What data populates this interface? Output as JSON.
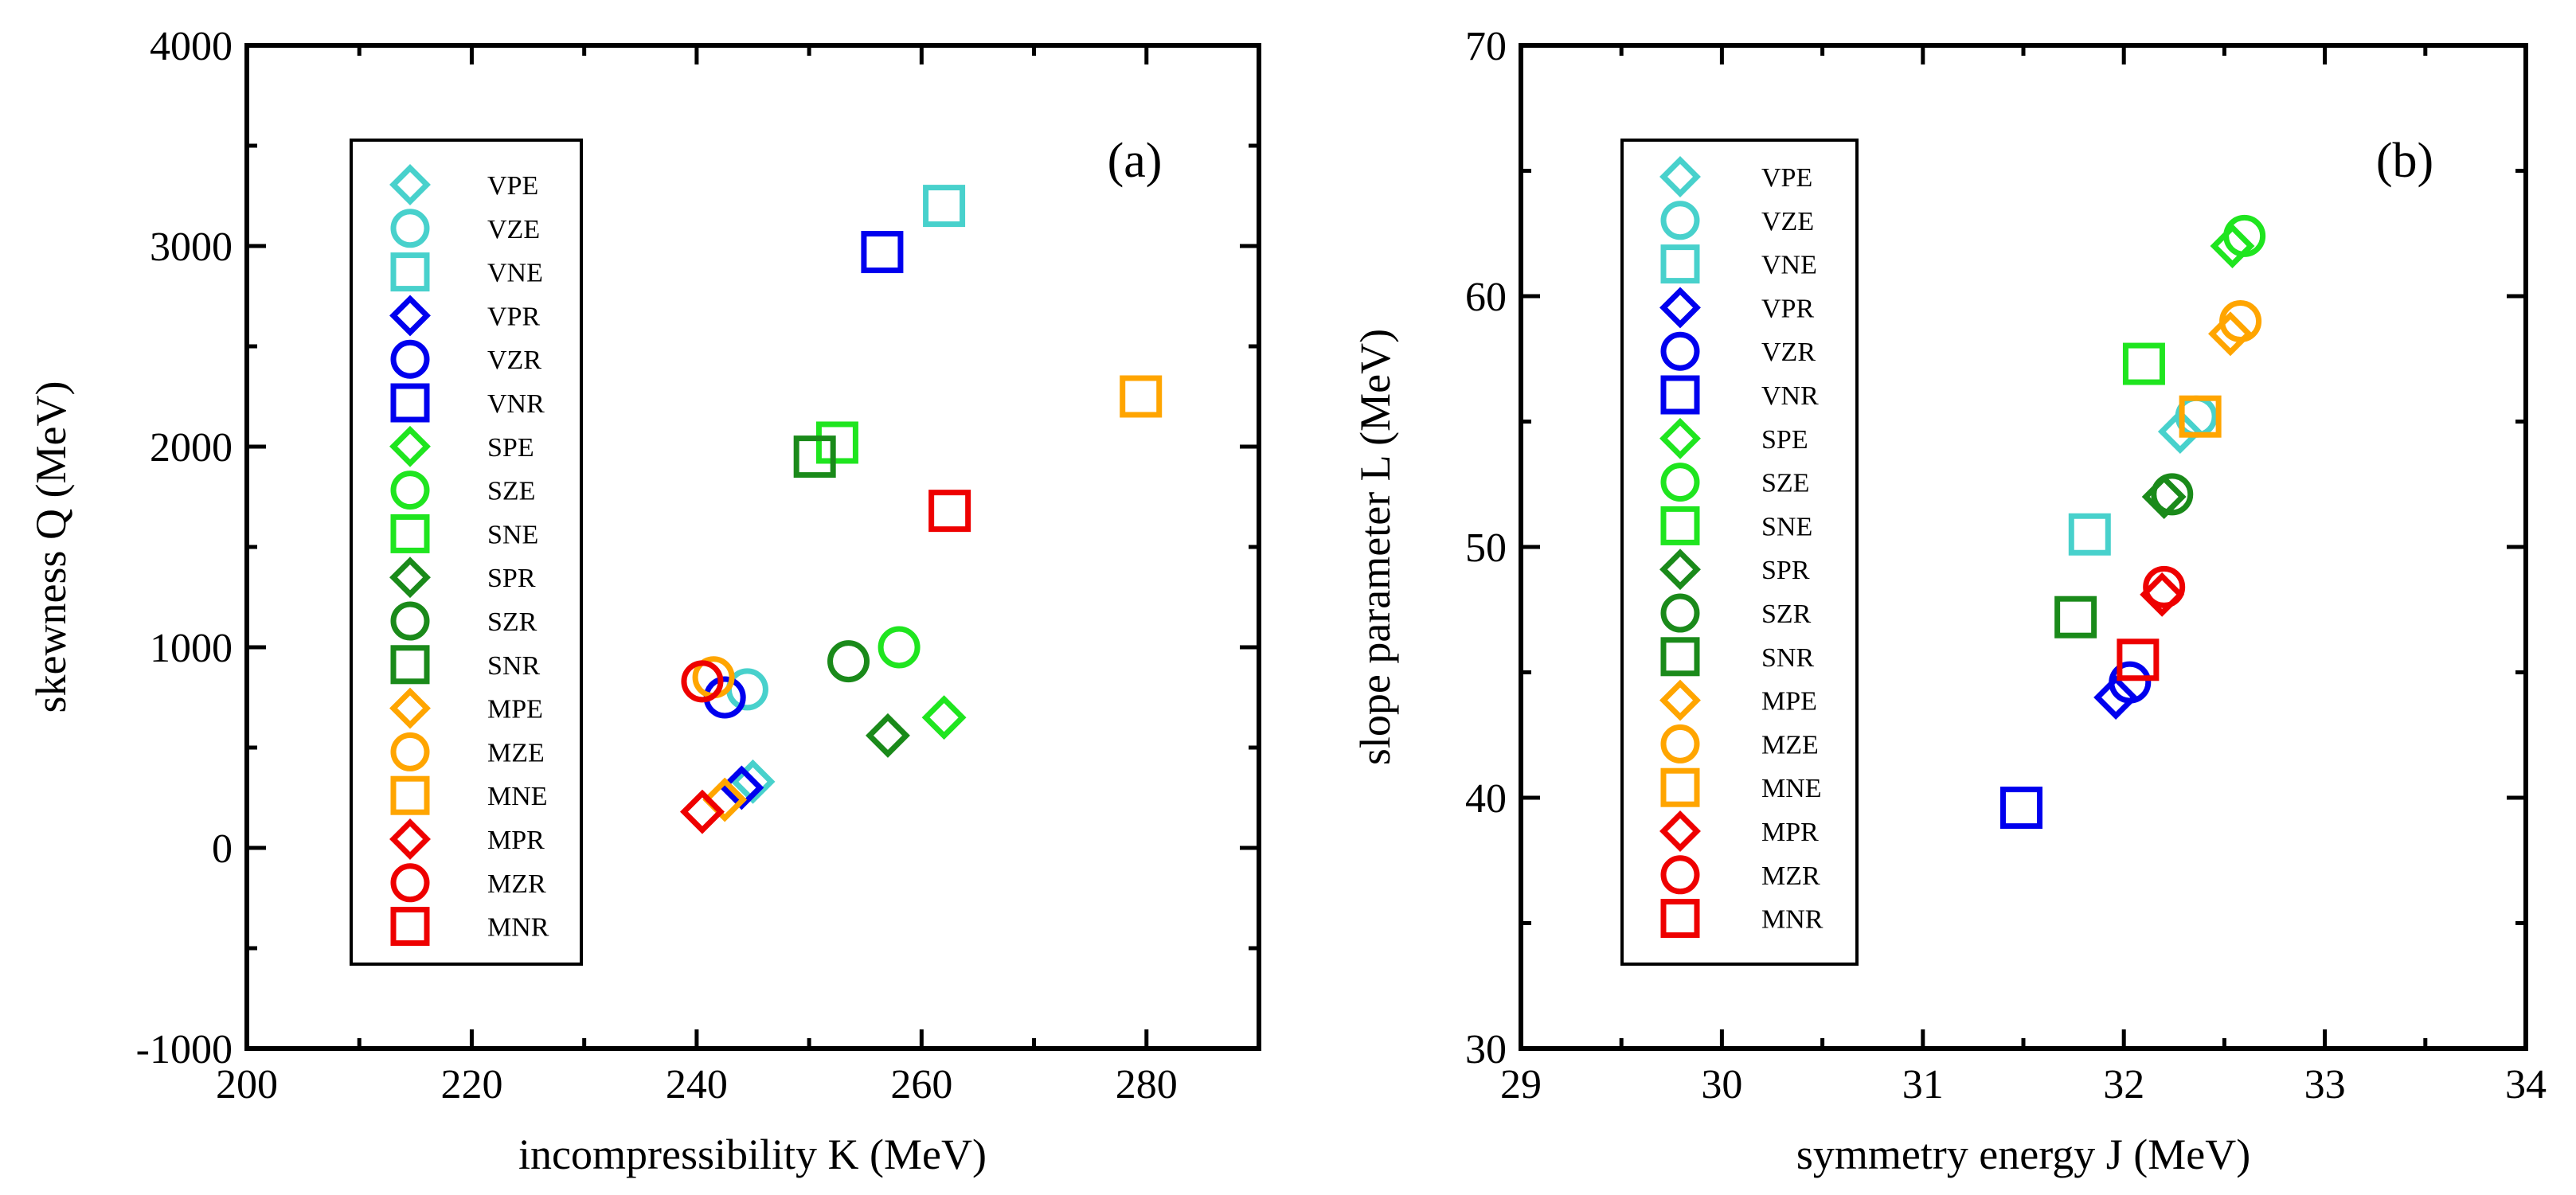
{
  "series_styles": [
    {
      "name": "VPE",
      "shape": "diamond",
      "color": "#48d1cc"
    },
    {
      "name": "VZE",
      "shape": "circle",
      "color": "#48d1cc"
    },
    {
      "name": "VNE",
      "shape": "square",
      "color": "#48d1cc"
    },
    {
      "name": "VPR",
      "shape": "diamond",
      "color": "#0000ee"
    },
    {
      "name": "VZR",
      "shape": "circle",
      "color": "#0000ee"
    },
    {
      "name": "VNR",
      "shape": "square",
      "color": "#0000ee"
    },
    {
      "name": "SPE",
      "shape": "diamond",
      "color": "#1fe51f"
    },
    {
      "name": "SZE",
      "shape": "circle",
      "color": "#1fe51f"
    },
    {
      "name": "SNE",
      "shape": "square",
      "color": "#1fe51f"
    },
    {
      "name": "SPR",
      "shape": "diamond",
      "color": "#1a8a1a"
    },
    {
      "name": "SZR",
      "shape": "circle",
      "color": "#1a8a1a"
    },
    {
      "name": "SNR",
      "shape": "square",
      "color": "#1a8a1a"
    },
    {
      "name": "MPE",
      "shape": "diamond",
      "color": "#ffa500"
    },
    {
      "name": "MZE",
      "shape": "circle",
      "color": "#ffa500"
    },
    {
      "name": "MNE",
      "shape": "square",
      "color": "#ffa500"
    },
    {
      "name": "MPR",
      "shape": "diamond",
      "color": "#ee0000"
    },
    {
      "name": "MZR",
      "shape": "circle",
      "color": "#ee0000"
    },
    {
      "name": "MNR",
      "shape": "square",
      "color": "#ee0000"
    }
  ],
  "chart_data": [
    {
      "type": "scatter",
      "panel_label": "(a)",
      "xlabel": "incompressibility   K   (MeV)",
      "ylabel": "skewness   Q   (MeV)",
      "xlim": [
        200,
        290
      ],
      "ylim": [
        -1000,
        4000
      ],
      "xticks": [
        200,
        220,
        240,
        260,
        280
      ],
      "yticks": [
        -1000,
        0,
        1000,
        2000,
        3000,
        4000
      ],
      "x_tick_labels": [
        "200",
        "220",
        "240",
        "260",
        "280"
      ],
      "y_tick_labels": [
        "-1000",
        "0",
        "1000",
        "2000",
        "3000",
        "4000"
      ],
      "legend_position": "left",
      "points": [
        {
          "series": "VPE",
          "x": 245.0,
          "y": 330
        },
        {
          "series": "VZE",
          "x": 244.5,
          "y": 790
        },
        {
          "series": "VNE",
          "x": 262.0,
          "y": 3200
        },
        {
          "series": "VPR",
          "x": 244.0,
          "y": 300
        },
        {
          "series": "VZR",
          "x": 242.5,
          "y": 750
        },
        {
          "series": "VNR",
          "x": 256.5,
          "y": 2970
        },
        {
          "series": "SPE",
          "x": 262.0,
          "y": 650
        },
        {
          "series": "SZE",
          "x": 258.0,
          "y": 1000
        },
        {
          "series": "SNE",
          "x": 252.5,
          "y": 2020
        },
        {
          "series": "SPR",
          "x": 257.0,
          "y": 560
        },
        {
          "series": "SZR",
          "x": 253.5,
          "y": 930
        },
        {
          "series": "SNR",
          "x": 250.5,
          "y": 1950
        },
        {
          "series": "MPE",
          "x": 242.5,
          "y": 240
        },
        {
          "series": "MZE",
          "x": 241.5,
          "y": 850
        },
        {
          "series": "MNE",
          "x": 279.5,
          "y": 2250
        },
        {
          "series": "MPR",
          "x": 240.5,
          "y": 180
        },
        {
          "series": "MZR",
          "x": 240.5,
          "y": 830
        },
        {
          "series": "MNR",
          "x": 262.5,
          "y": 1680
        }
      ]
    },
    {
      "type": "scatter",
      "panel_label": "(b)",
      "xlabel": "symmetry energy   J   (MeV)",
      "ylabel": "slope parameter   L   (MeV)",
      "xlim": [
        29,
        34
      ],
      "ylim": [
        30,
        70
      ],
      "xticks": [
        29,
        30,
        31,
        32,
        33,
        34
      ],
      "yticks": [
        30,
        40,
        50,
        60,
        70
      ],
      "x_tick_labels": [
        "29",
        "30",
        "31",
        "32",
        "33",
        "34"
      ],
      "y_tick_labels": [
        "30",
        "40",
        "50",
        "60",
        "70"
      ],
      "legend_position": "left",
      "points": [
        {
          "series": "VPE",
          "x": 32.28,
          "y": 54.6
        },
        {
          "series": "VZE",
          "x": 32.36,
          "y": 55.2
        },
        {
          "series": "VNE",
          "x": 31.83,
          "y": 50.5
        },
        {
          "series": "VPR",
          "x": 31.96,
          "y": 44.0
        },
        {
          "series": "VZR",
          "x": 32.03,
          "y": 44.6
        },
        {
          "series": "VNR",
          "x": 31.49,
          "y": 39.6
        },
        {
          "series": "SPE",
          "x": 32.54,
          "y": 62.0
        },
        {
          "series": "SZE",
          "x": 32.6,
          "y": 62.4
        },
        {
          "series": "SNE",
          "x": 32.1,
          "y": 57.3
        },
        {
          "series": "SPR",
          "x": 32.2,
          "y": 52.0
        },
        {
          "series": "SZR",
          "x": 32.24,
          "y": 52.1
        },
        {
          "series": "SNR",
          "x": 31.76,
          "y": 47.2
        },
        {
          "series": "MPE",
          "x": 32.53,
          "y": 58.5
        },
        {
          "series": "MZE",
          "x": 32.58,
          "y": 59.0
        },
        {
          "series": "MNE",
          "x": 32.38,
          "y": 55.2
        },
        {
          "series": "MPR",
          "x": 32.19,
          "y": 48.1
        },
        {
          "series": "MZR",
          "x": 32.2,
          "y": 48.4
        },
        {
          "series": "MNR",
          "x": 32.07,
          "y": 45.5
        }
      ]
    }
  ]
}
